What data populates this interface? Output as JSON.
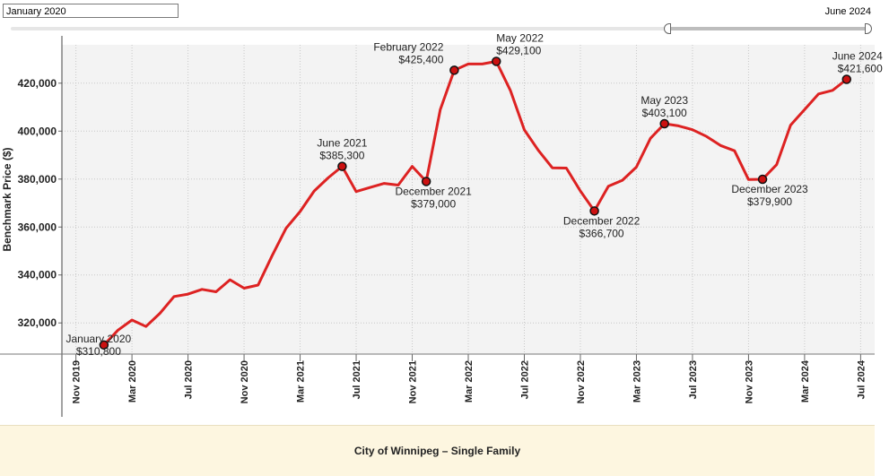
{
  "range": {
    "start": "January 2020",
    "end": "June 2024"
  },
  "footer": {
    "title": "City of Winnipeg – Single Family"
  },
  "colors": {
    "line": "#dd2222",
    "marker": "#cc1111",
    "plot_bg": "#f3f3f3"
  },
  "chart_data": {
    "type": "line",
    "ylabel": "Benchmark Price ($)",
    "ylim": [
      307000,
      436000
    ],
    "yticks": [
      {
        "value": 320000,
        "label": "320,000"
      },
      {
        "value": 340000,
        "label": "340,000"
      },
      {
        "value": 360000,
        "label": "360,000"
      },
      {
        "value": 380000,
        "label": "380,000"
      },
      {
        "value": 400000,
        "label": "400,000"
      },
      {
        "value": 420000,
        "label": "420,000"
      }
    ],
    "xlim": [
      "2019-10-01",
      "2024-08-01"
    ],
    "xticks": [
      {
        "date": "2019-11",
        "label": "Nov 2019"
      },
      {
        "date": "2020-03",
        "label": "Mar 2020"
      },
      {
        "date": "2020-07",
        "label": "Jul 2020"
      },
      {
        "date": "2020-11",
        "label": "Nov 2020"
      },
      {
        "date": "2021-03",
        "label": "Mar 2021"
      },
      {
        "date": "2021-07",
        "label": "Jul 2021"
      },
      {
        "date": "2021-11",
        "label": "Nov 2021"
      },
      {
        "date": "2022-03",
        "label": "Mar 2022"
      },
      {
        "date": "2022-07",
        "label": "Jul 2022"
      },
      {
        "date": "2022-11",
        "label": "Nov 2022"
      },
      {
        "date": "2023-03",
        "label": "Mar 2023"
      },
      {
        "date": "2023-07",
        "label": "Jul 2023"
      },
      {
        "date": "2023-11",
        "label": "Nov 2023"
      },
      {
        "date": "2024-03",
        "label": "Mar 2024"
      },
      {
        "date": "2024-07",
        "label": "Jul 2024"
      }
    ],
    "grid": true,
    "series": [
      {
        "x": [
          "2020-01",
          "2020-02",
          "2020-03",
          "2020-04",
          "2020-05",
          "2020-06",
          "2020-07",
          "2020-08",
          "2020-09",
          "2020-10",
          "2020-11",
          "2020-12",
          "2021-01",
          "2021-02",
          "2021-03",
          "2021-04",
          "2021-05",
          "2021-06",
          "2021-07",
          "2021-08",
          "2021-09",
          "2021-10",
          "2021-11",
          "2021-12",
          "2022-01",
          "2022-02",
          "2022-03",
          "2022-04",
          "2022-05",
          "2022-06",
          "2022-07",
          "2022-08",
          "2022-09",
          "2022-10",
          "2022-11",
          "2022-12",
          "2023-01",
          "2023-02",
          "2023-03",
          "2023-04",
          "2023-05",
          "2023-06",
          "2023-07",
          "2023-08",
          "2023-09",
          "2023-10",
          "2023-11",
          "2023-12",
          "2024-01",
          "2024-02",
          "2024-03",
          "2024-04",
          "2024-05",
          "2024-06"
        ],
        "values": [
          310800,
          317000,
          321200,
          318500,
          324000,
          331000,
          332000,
          334000,
          333000,
          338000,
          334500,
          335800,
          348000,
          359500,
          366500,
          375000,
          380500,
          385300,
          374800,
          376500,
          378200,
          377500,
          385300,
          379000,
          409000,
          425400,
          428000,
          428000,
          429100,
          417000,
          400500,
          392000,
          384700,
          384600,
          375000,
          366700,
          377000,
          379500,
          385000,
          397000,
          403100,
          402200,
          400600,
          397800,
          394000,
          391800,
          379800,
          379900,
          386000,
          402500,
          409000,
          415500,
          417000,
          421600
        ]
      }
    ],
    "annotations": [
      {
        "date": "2020-01",
        "value": 310800,
        "line1": "January 2020",
        "line2": "$310,800"
      },
      {
        "date": "2021-06",
        "value": 385300,
        "line1": "June 2021",
        "line2": "$385,300"
      },
      {
        "date": "2021-12",
        "value": 379000,
        "line1": "December 2021",
        "line2": "$379,000"
      },
      {
        "date": "2022-02",
        "value": 425400,
        "line1": "February 2022",
        "line2": "$425,400"
      },
      {
        "date": "2022-05",
        "value": 429100,
        "line1": "May 2022",
        "line2": "$429,100"
      },
      {
        "date": "2022-12",
        "value": 366700,
        "line1": "December 2022",
        "line2": "$366,700"
      },
      {
        "date": "2023-05",
        "value": 403100,
        "line1": "May 2023",
        "line2": "$403,100"
      },
      {
        "date": "2023-12",
        "value": 379900,
        "line1": "December 2023",
        "line2": "$379,900"
      },
      {
        "date": "2024-06",
        "value": 421600,
        "line1": "June 2024",
        "line2": "$421,600"
      }
    ]
  }
}
